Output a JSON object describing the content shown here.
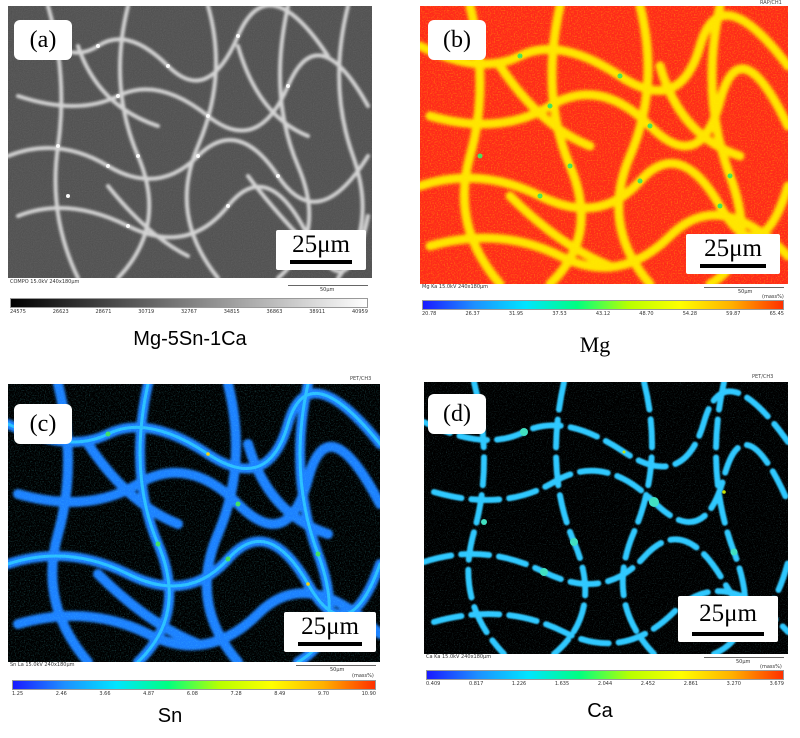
{
  "panels": [
    {
      "id": "a",
      "label": "(a)",
      "scale_label": "25μm",
      "info": "COMPO 15.0kV  240x180μm",
      "small_scale": "50μm",
      "tick_labels": [
        "24575",
        "26623",
        "28671",
        "30719",
        "32767",
        "34815",
        "36863",
        "38911",
        "40959"
      ],
      "caption": "Mg-5Sn-1Ca",
      "colormap": "grayscale",
      "top_tag": ""
    },
    {
      "id": "b",
      "label": "(b)",
      "scale_label": "25μm",
      "info": "Mg Ka 15.0kV  240x180μm",
      "small_scale": "50μm",
      "unit": "(mass%)",
      "tick_labels": [
        "20.78",
        "26.37",
        "31.95",
        "37.53",
        "43.12",
        "48.70",
        "54.28",
        "59.87",
        "65.45"
      ],
      "caption": "Mg",
      "colormap": "rainbow",
      "top_tag": "RAP/CH1"
    },
    {
      "id": "c",
      "label": "(c)",
      "scale_label": "25μm",
      "info": "Sn La 15.0kV  240x180μm",
      "small_scale": "50μm",
      "unit": "(mass%)",
      "tick_labels": [
        "1.25",
        "2.46",
        "3.66",
        "4.87",
        "6.08",
        "7.28",
        "8.49",
        "9.70",
        "10.90"
      ],
      "caption": "Sn",
      "colormap": "rainbow",
      "top_tag": "PET/CH3"
    },
    {
      "id": "d",
      "label": "(d)",
      "scale_label": "25μm",
      "info": "Ca Ka 15.0kV  240x180μm",
      "small_scale": "50μm",
      "unit": "(mass%)",
      "tick_labels": [
        "0.409",
        "0.817",
        "1.226",
        "1.635",
        "2.044",
        "2.452",
        "2.861",
        "3.270",
        "3.679"
      ],
      "caption": "Ca",
      "colormap": "rainbow",
      "top_tag": "PET/CH3"
    }
  ],
  "colors": {
    "rainbow": [
      "#1a1aff",
      "#1e90ff",
      "#00e5ff",
      "#00ff80",
      "#b8ff00",
      "#ffff00",
      "#ffb000",
      "#ff3000"
    ],
    "grayscale": [
      "#000000",
      "#ffffff"
    ],
    "mg_background": "#ff2a1a",
    "mg_network": "#ffe400",
    "sn_network": "#1e90ff",
    "ca_network": "#30e0ff",
    "sem_background": "#4a4a4a",
    "sem_network": "#dcdcdc"
  }
}
